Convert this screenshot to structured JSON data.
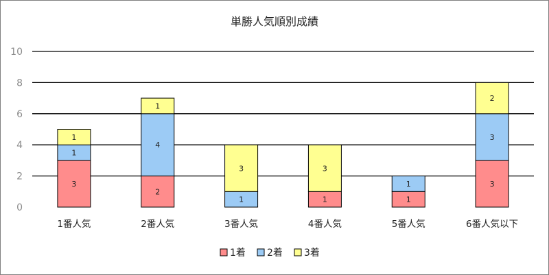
{
  "chart_data": {
    "type": "bar",
    "stacked": true,
    "title": "単勝人気順別成績",
    "categories": [
      "1番人気",
      "2番人気",
      "3番人気",
      "4番人気",
      "5番人気",
      "6番人気以下"
    ],
    "series": [
      {
        "name": "1着",
        "color": "#ff8c8c",
        "values": [
          3,
          2,
          0,
          1,
          1,
          3
        ]
      },
      {
        "name": "2着",
        "color": "#9ccbf5",
        "values": [
          1,
          4,
          1,
          0,
          1,
          3
        ]
      },
      {
        "name": "3着",
        "color": "#ffff91",
        "values": [
          1,
          1,
          3,
          3,
          0,
          2
        ]
      }
    ],
    "ylim": [
      0,
      10
    ],
    "yticks": [
      0,
      2,
      4,
      6,
      8,
      10
    ],
    "grid": true,
    "legend": "bottom"
  }
}
